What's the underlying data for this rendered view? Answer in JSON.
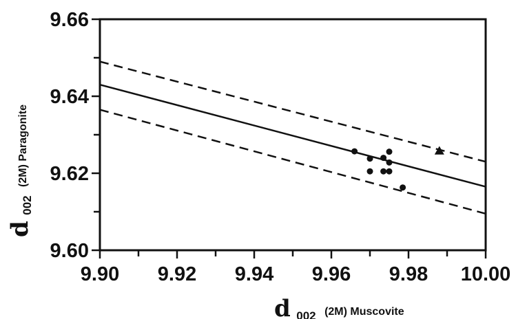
{
  "chart_data": {
    "type": "scatter",
    "title": "",
    "xlabel": {
      "d": "d",
      "sub": "002",
      "text": "(2M) Muscovite"
    },
    "ylabel": {
      "d": "d",
      "sub": "002",
      "text": "(2M) Paragonite"
    },
    "xlim": [
      9.9,
      10.0
    ],
    "ylim": [
      9.6,
      9.66
    ],
    "x_ticks": [
      9.9,
      9.92,
      9.94,
      9.96,
      9.98,
      10.0
    ],
    "y_ticks": [
      9.6,
      9.62,
      9.64,
      9.66
    ],
    "x_tick_labels": [
      "9.90",
      "9.92",
      "9.94",
      "9.96",
      "9.98",
      "10.00"
    ],
    "y_tick_labels": [
      "9.60",
      "9.62",
      "9.64",
      "9.66"
    ],
    "grid": false,
    "lines": [
      {
        "style": "solid",
        "x": [
          9.9,
          10.0
        ],
        "y": [
          9.643,
          9.6165
        ]
      },
      {
        "style": "dashed",
        "x": [
          9.9,
          10.0
        ],
        "y": [
          9.649,
          9.623
        ]
      },
      {
        "style": "dashed",
        "x": [
          9.9,
          10.0
        ],
        "y": [
          9.6365,
          9.6095
        ]
      }
    ],
    "series": [
      {
        "marker": "circle",
        "points": [
          [
            9.966,
            9.6257
          ],
          [
            9.97,
            9.6238
          ],
          [
            9.97,
            9.6205
          ],
          [
            9.9735,
            9.624
          ],
          [
            9.9735,
            9.6205
          ],
          [
            9.975,
            9.6256
          ],
          [
            9.975,
            9.6228
          ],
          [
            9.975,
            9.6205
          ],
          [
            9.9785,
            9.6163
          ]
        ]
      },
      {
        "marker": "triangle",
        "points": [
          [
            9.988,
            9.6258
          ]
        ]
      }
    ],
    "colors": {
      "ink": "#111111",
      "background": "#ffffff"
    }
  }
}
